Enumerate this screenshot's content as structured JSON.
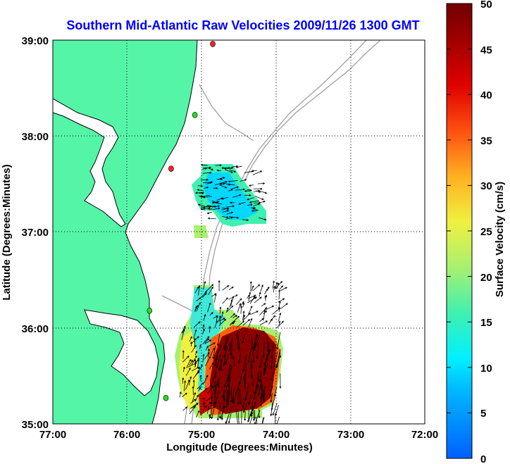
{
  "chart_data": {
    "type": "heatmap",
    "title": "Southern Mid-Atlantic Raw Velocities 2009/11/26 1300 GMT",
    "xlabel": "Longitude (Degrees:Minutes)",
    "ylabel": "Latitude (Degrees:Minutes)",
    "colorbar_label": "Surface Velocity (cm/s)",
    "x_range": [
      -77.0,
      -72.0
    ],
    "y_range": [
      35.0,
      39.0
    ],
    "x_ticks": [
      "77:00",
      "76:00",
      "75:00",
      "74:00",
      "73:00",
      "72:00"
    ],
    "y_ticks": [
      "39:00",
      "38:00",
      "37:00",
      "36:00",
      "35:00"
    ],
    "colorbar_range": [
      0,
      50
    ],
    "colorbar_ticks": [
      "50",
      "45",
      "40",
      "35",
      "30",
      "25",
      "20",
      "15",
      "10",
      "5",
      "0"
    ],
    "grid": true,
    "colors": {
      "title": "#0000ff",
      "land": "#55f5a8",
      "coastline": "#000000",
      "bathymetry": "#a0a0a0",
      "grid": "#000000",
      "station_active": "#22dd22",
      "station_inactive": "#ff2020"
    },
    "stations": [
      {
        "lon": -74.85,
        "lat": 38.96,
        "status": "inactive"
      },
      {
        "lon": -75.09,
        "lat": 38.22,
        "status": "active"
      },
      {
        "lon": -75.41,
        "lat": 37.66,
        "status": "inactive"
      },
      {
        "lon": -75.7,
        "lat": 36.18,
        "status": "active"
      },
      {
        "lon": -75.48,
        "lat": 35.27,
        "status": "active"
      }
    ],
    "velocity_regions": [
      {
        "name": "northern patch",
        "speed_range_cm_s": [
          5,
          20
        ],
        "center": [
          -74.7,
          37.2
        ]
      },
      {
        "name": "southern patch",
        "speed_range_cm_s": [
          10,
          50
        ],
        "center": [
          -74.45,
          35.65
        ]
      }
    ]
  }
}
